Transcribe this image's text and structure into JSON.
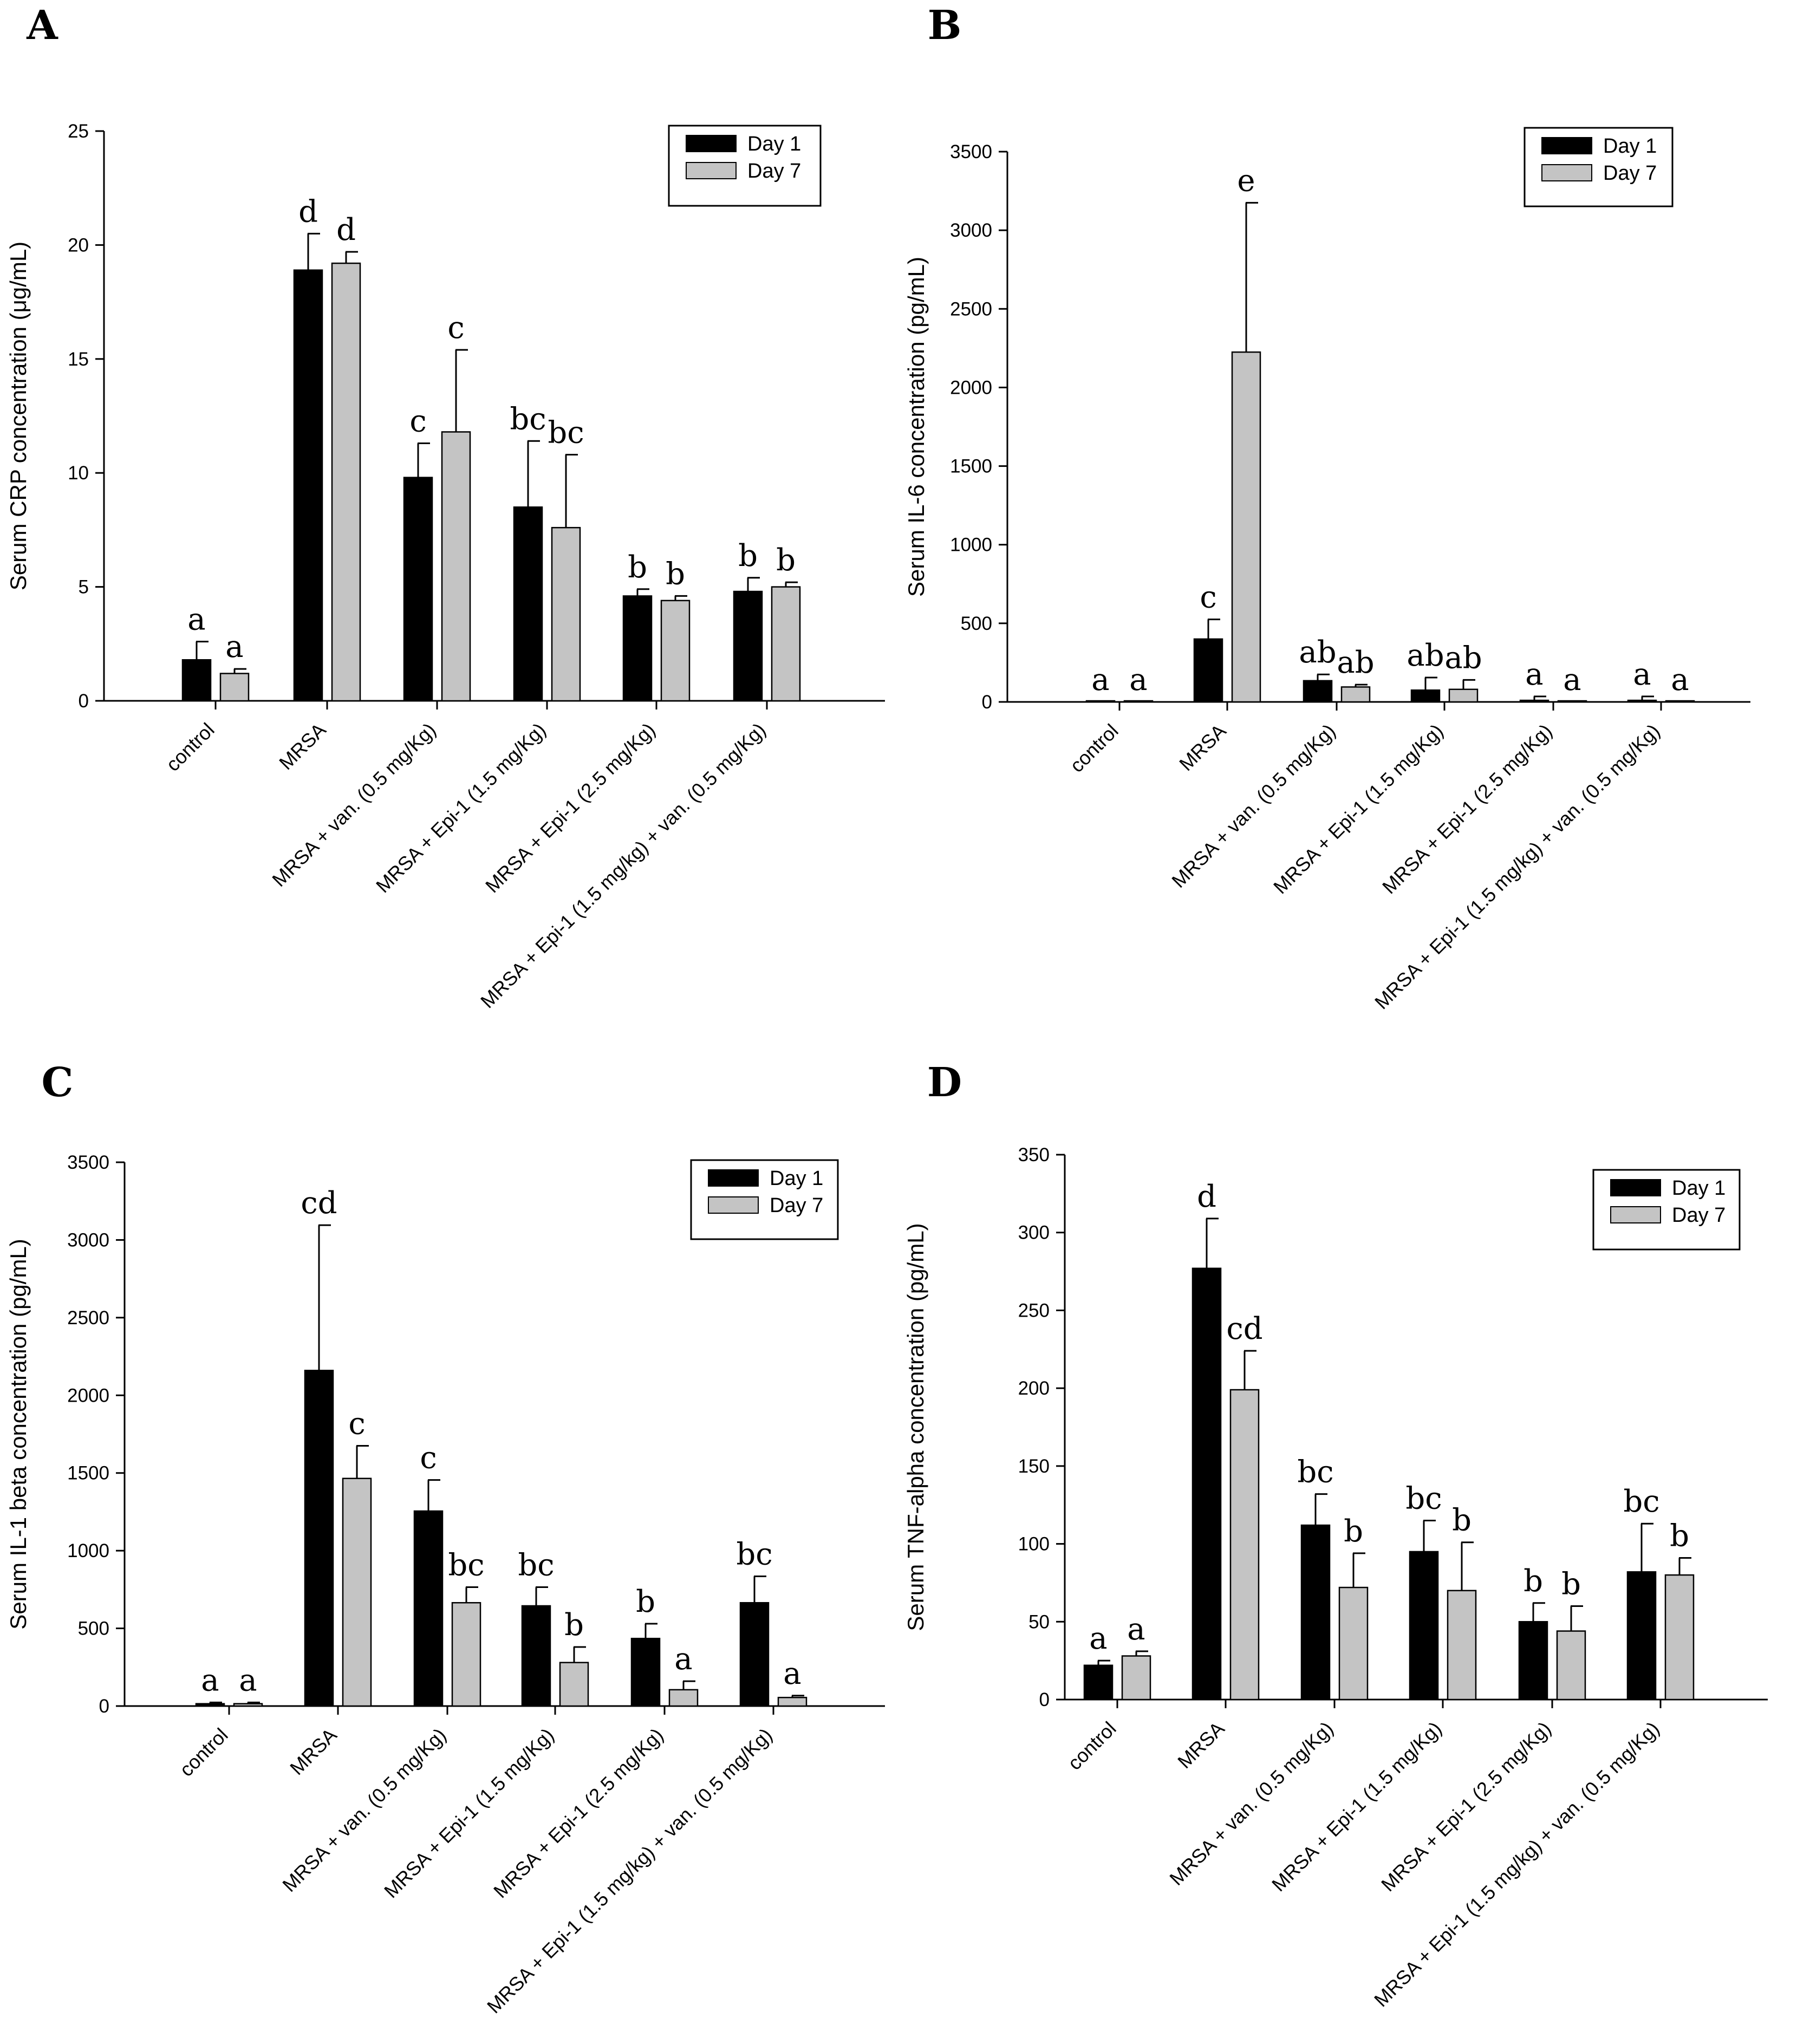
{
  "colors": {
    "day1": "#000000",
    "day7": "#c4c4c4",
    "axis": "#000000",
    "error_bar": "#000000"
  },
  "chart_data": [
    {
      "panel": "A",
      "type": "bar",
      "ylabel": "Serum CRP concentration (μg/mL)",
      "xlabel": "",
      "ylim": [
        0,
        25
      ],
      "yticks": [
        0,
        5,
        10,
        15,
        20,
        25
      ],
      "legend_position": "top-right",
      "categories": [
        "control",
        "MRSA",
        "MRSA + van. (0.5 mg/Kg)",
        "MRSA + Epi-1 (1.5 mg/Kg)",
        "MRSA + Epi-1 (2.5 mg/Kg)",
        "MRSA + Epi-1 (1.5 mg/kg) + van. (0.5 mg/Kg)"
      ],
      "series": [
        {
          "name": "Day 1",
          "values": [
            1.8,
            18.9,
            9.8,
            8.5,
            4.6,
            4.8
          ],
          "errors": [
            0.8,
            1.6,
            1.5,
            2.9,
            0.3,
            0.6
          ],
          "labels": [
            "a",
            "d",
            "c",
            "bc",
            "b",
            "b"
          ]
        },
        {
          "name": "Day 7",
          "values": [
            1.2,
            19.2,
            11.8,
            7.6,
            4.4,
            5.0
          ],
          "errors": [
            0.2,
            0.5,
            3.6,
            3.2,
            0.2,
            0.2
          ],
          "labels": [
            "a",
            "d",
            "c",
            "bc",
            "b",
            "b"
          ]
        }
      ]
    },
    {
      "panel": "B",
      "type": "bar",
      "ylabel": "Serum IL-6 concentration (pg/mL)",
      "xlabel": "",
      "ylim": [
        0,
        3500
      ],
      "yticks": [
        0,
        500,
        1000,
        1500,
        2000,
        2500,
        3000,
        3500
      ],
      "legend_position": "top-right",
      "categories": [
        "control",
        "MRSA",
        "MRSA + van. (0.5 mg/Kg)",
        "MRSA + Epi-1 (1.5 mg/Kg)",
        "MRSA + Epi-1 (2.5 mg/Kg)",
        "MRSA + Epi-1 (1.5 mg/kg) + van. (0.5 mg/Kg)"
      ],
      "series": [
        {
          "name": "Day 1",
          "values": [
            0,
            400,
            135,
            75,
            10,
            10
          ],
          "errors": [
            0,
            125,
            40,
            80,
            25,
            25
          ],
          "labels": [
            "a",
            "c",
            "ab",
            "ab",
            "a",
            "a"
          ]
        },
        {
          "name": "Day 7",
          "values": [
            0,
            2225,
            95,
            80,
            0,
            0
          ],
          "errors": [
            0,
            950,
            15,
            60,
            0,
            0
          ],
          "labels": [
            "a",
            "e",
            "ab",
            "ab",
            "a",
            "a"
          ]
        }
      ]
    },
    {
      "panel": "C",
      "type": "bar",
      "ylabel": "Serum IL-1 beta concentration (pg/mL)",
      "xlabel": "",
      "ylim": [
        0,
        3500
      ],
      "yticks": [
        0,
        500,
        1000,
        1500,
        2000,
        2500,
        3000,
        3500
      ],
      "legend_position": "top-right",
      "categories": [
        "control",
        "MRSA",
        "MRSA + van. (0.5 mg/Kg)",
        "MRSA + Epi-1 (1.5 mg/Kg)",
        "MRSA + Epi-1 (2.5 mg/Kg)",
        "MRSA + Epi-1 (1.5 mg/kg) + van. (0.5 mg/Kg)"
      ],
      "series": [
        {
          "name": "Day 1",
          "values": [
            15,
            2160,
            1255,
            645,
            435,
            665
          ],
          "errors": [
            8,
            935,
            200,
            120,
            95,
            170
          ],
          "labels": [
            "a",
            "cd",
            "c",
            "bc",
            "b",
            "bc"
          ]
        },
        {
          "name": "Day 7",
          "values": [
            15,
            1465,
            665,
            280,
            105,
            55
          ],
          "errors": [
            8,
            210,
            100,
            100,
            55,
            12
          ],
          "labels": [
            "a",
            "c",
            "bc",
            "b",
            "a",
            "a"
          ]
        }
      ]
    },
    {
      "panel": "D",
      "type": "bar",
      "ylabel": "Serum TNF-alpha concentration (pg/mL)",
      "xlabel": "",
      "ylim": [
        0,
        350
      ],
      "yticks": [
        0,
        50,
        100,
        150,
        200,
        250,
        300,
        350
      ],
      "legend_position": "top-right",
      "categories": [
        "control",
        "MRSA",
        "MRSA + van. (0.5 mg/Kg)",
        "MRSA + Epi-1 (1.5 mg/Kg)",
        "MRSA + Epi-1 (2.5 mg/Kg)",
        "MRSA + Epi-1 (1.5 mg/kg) + van. (0.5 mg/Kg)"
      ],
      "series": [
        {
          "name": "Day 1",
          "values": [
            22,
            277,
            112,
            95,
            50,
            82
          ],
          "errors": [
            3,
            32,
            20,
            20,
            12,
            31
          ],
          "labels": [
            "a",
            "d",
            "bc",
            "bc",
            "b",
            "bc"
          ]
        },
        {
          "name": "Day 7",
          "values": [
            28,
            199,
            72,
            70,
            44,
            80
          ],
          "errors": [
            3,
            25,
            22,
            31,
            16,
            11
          ],
          "labels": [
            "a",
            "cd",
            "b",
            "b",
            "b",
            "b"
          ]
        }
      ]
    }
  ]
}
